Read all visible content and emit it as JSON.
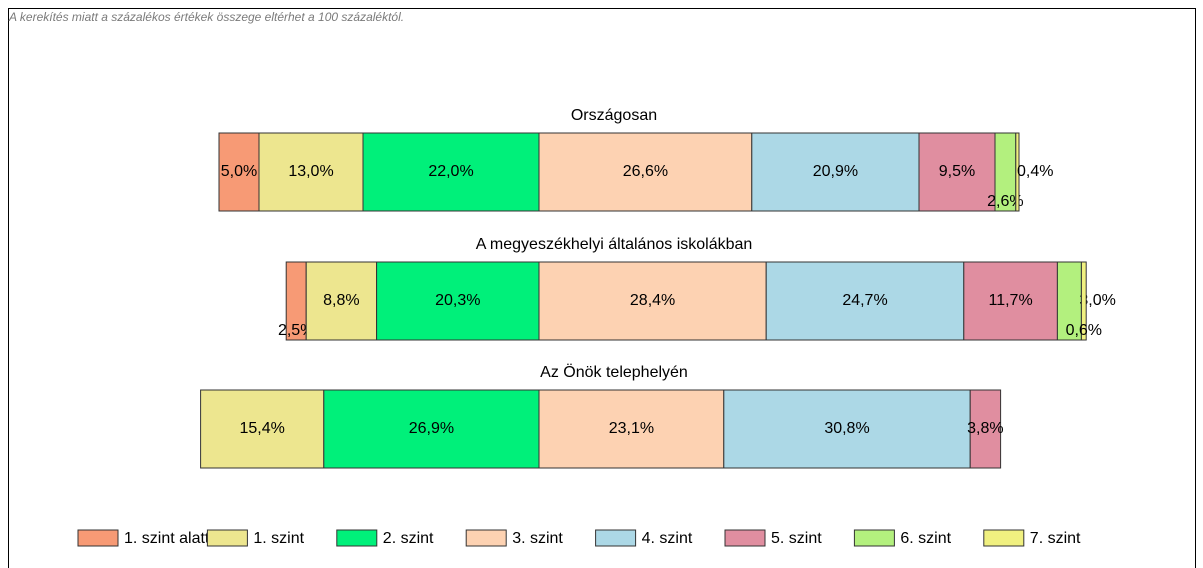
{
  "note": "A kerekítés miatt a  százalékos értékek összege eltérhet a 100 százaléktól.",
  "chart_data": {
    "type": "diverging_stacked_bar",
    "categories": [
      "Országosan",
      "A megyeszékhelyi általános iskolákban",
      "Az Önök telephelyén"
    ],
    "series": [
      {
        "name": "1. szint alatti",
        "color": "#f79a75",
        "values": [
          5.0,
          2.5,
          null
        ],
        "value_labels": [
          "5,0%",
          "2,5%",
          null
        ]
      },
      {
        "name": "1. szint",
        "color": "#ede68f",
        "values": [
          13.0,
          8.8,
          15.4
        ],
        "value_labels": [
          "13,0%",
          "8,8%",
          "15,4%"
        ]
      },
      {
        "name": "2. szint",
        "color": "#00f07a",
        "values": [
          22.0,
          20.3,
          26.9
        ],
        "value_labels": [
          "22,0%",
          "20,3%",
          "26,9%"
        ]
      },
      {
        "name": "3. szint",
        "color": "#fdd2b2",
        "values": [
          26.6,
          28.4,
          23.1
        ],
        "value_labels": [
          "26,6%",
          "28,4%",
          "23,1%"
        ]
      },
      {
        "name": "4. szint",
        "color": "#acd8e6",
        "values": [
          20.9,
          24.7,
          30.8
        ],
        "value_labels": [
          "20,9%",
          "24,7%",
          "30,8%"
        ]
      },
      {
        "name": "5. szint",
        "color": "#e08ea0",
        "values": [
          9.5,
          11.7,
          3.8
        ],
        "value_labels": [
          "9,5%",
          "11,7%",
          "3,8%"
        ]
      },
      {
        "name": "6. szint",
        "color": "#b3f07e",
        "values": [
          2.6,
          3.0,
          null
        ],
        "value_labels": [
          "2,6%",
          "3,0%",
          null
        ]
      },
      {
        "name": "7. szint",
        "color": "#f0f080",
        "values": [
          0.4,
          0.6,
          null
        ],
        "value_labels": [
          "0,4%",
          "0,6%",
          null
        ]
      }
    ]
  }
}
